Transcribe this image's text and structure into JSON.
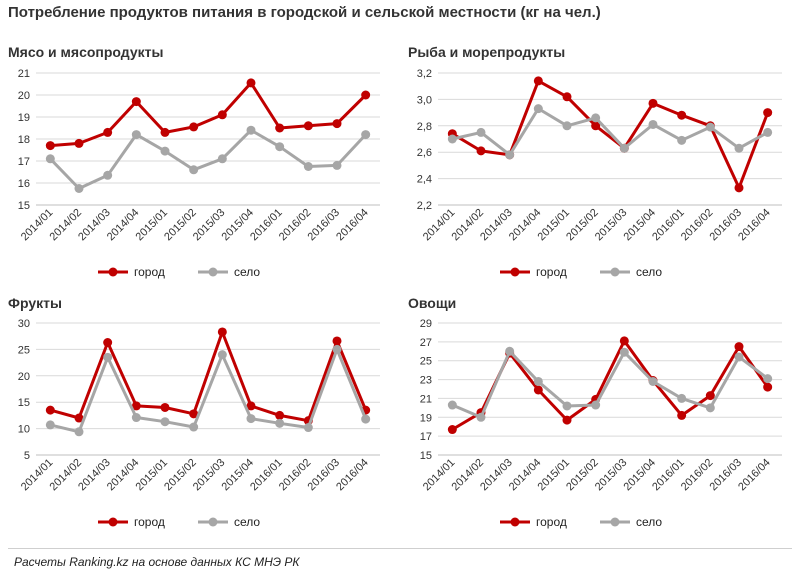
{
  "title": "Потребление продуктов питания в городской и сельской местности (кг на чел.)",
  "footer": "Расчеты Ranking.kz на основе данных КС МНЭ РК",
  "colors": {
    "city": "#c00000",
    "village": "#a6a6a6"
  },
  "chart_data": [
    {
      "type": "line",
      "title": "Мясо  и мясопродукты",
      "categories": [
        "2014/01",
        "2014/02",
        "2014/03",
        "2014/04",
        "2015/01",
        "2015/02",
        "2015/03",
        "2015/04",
        "2016/01",
        "2016/02",
        "2016/03",
        "2016/04"
      ],
      "ylim": [
        15,
        21
      ],
      "yticks": [
        "15",
        "16",
        "17",
        "18",
        "19",
        "20",
        "21"
      ],
      "series": [
        {
          "name": "город",
          "values": [
            17.7,
            17.8,
            18.3,
            19.7,
            18.3,
            18.55,
            19.1,
            20.55,
            18.5,
            18.6,
            18.7,
            20.0
          ]
        },
        {
          "name": "село",
          "values": [
            17.1,
            15.75,
            16.35,
            18.2,
            17.45,
            16.6,
            17.1,
            18.4,
            17.65,
            16.75,
            16.8,
            18.2
          ]
        }
      ],
      "legend": "bottom"
    },
    {
      "type": "line",
      "title": "Рыба и морепродукты",
      "categories": [
        "2014/01",
        "2014/02",
        "2014/03",
        "2014/04",
        "2015/01",
        "2015/02",
        "2015/03",
        "2015/04",
        "2016/01",
        "2016/02",
        "2016/03",
        "2016/04"
      ],
      "ylim": [
        2.2,
        3.2
      ],
      "yticks": [
        "2,2",
        "2,4",
        "2,6",
        "2,8",
        "3,0",
        "3,2"
      ],
      "series": [
        {
          "name": "город",
          "values": [
            2.74,
            2.61,
            2.58,
            3.14,
            3.02,
            2.8,
            2.63,
            2.97,
            2.88,
            2.8,
            2.33,
            2.9
          ]
        },
        {
          "name": "село",
          "values": [
            2.7,
            2.75,
            2.58,
            2.93,
            2.8,
            2.86,
            2.63,
            2.81,
            2.69,
            2.79,
            2.63,
            2.75
          ]
        }
      ],
      "legend": "bottom"
    },
    {
      "type": "line",
      "title": "Фрукты",
      "categories": [
        "2014/01",
        "2014/02",
        "2014/03",
        "2014/04",
        "2015/01",
        "2015/02",
        "2015/03",
        "2015/04",
        "2016/01",
        "2016/02",
        "2016/03",
        "2016/04"
      ],
      "ylim": [
        5,
        30
      ],
      "yticks": [
        "5",
        "10",
        "15",
        "20",
        "25",
        "30"
      ],
      "series": [
        {
          "name": "город",
          "values": [
            13.5,
            12.0,
            26.3,
            14.3,
            14.0,
            12.8,
            28.3,
            14.3,
            12.5,
            11.5,
            26.6,
            13.5
          ]
        },
        {
          "name": "село",
          "values": [
            10.7,
            9.4,
            23.5,
            12.1,
            11.3,
            10.3,
            24.0,
            11.9,
            11.0,
            10.2,
            25.0,
            11.8
          ]
        }
      ],
      "legend": "bottom"
    },
    {
      "type": "line",
      "title": "Овощи",
      "categories": [
        "2014/01",
        "2014/02",
        "2014/03",
        "2014/04",
        "2015/01",
        "2015/02",
        "2015/03",
        "2015/04",
        "2016/01",
        "2016/02",
        "2016/03",
        "2016/04"
      ],
      "ylim": [
        15,
        29
      ],
      "yticks": [
        "15",
        "17",
        "19",
        "21",
        "23",
        "25",
        "27",
        "29"
      ],
      "series": [
        {
          "name": "город",
          "values": [
            17.7,
            19.5,
            25.8,
            21.9,
            18.7,
            20.9,
            27.1,
            22.9,
            19.2,
            21.3,
            26.5,
            22.2
          ]
        },
        {
          "name": "село",
          "values": [
            20.3,
            19.0,
            26.0,
            22.8,
            20.2,
            20.3,
            25.9,
            22.8,
            21.0,
            20.0,
            25.4,
            23.1
          ]
        }
      ],
      "legend": "bottom"
    }
  ]
}
